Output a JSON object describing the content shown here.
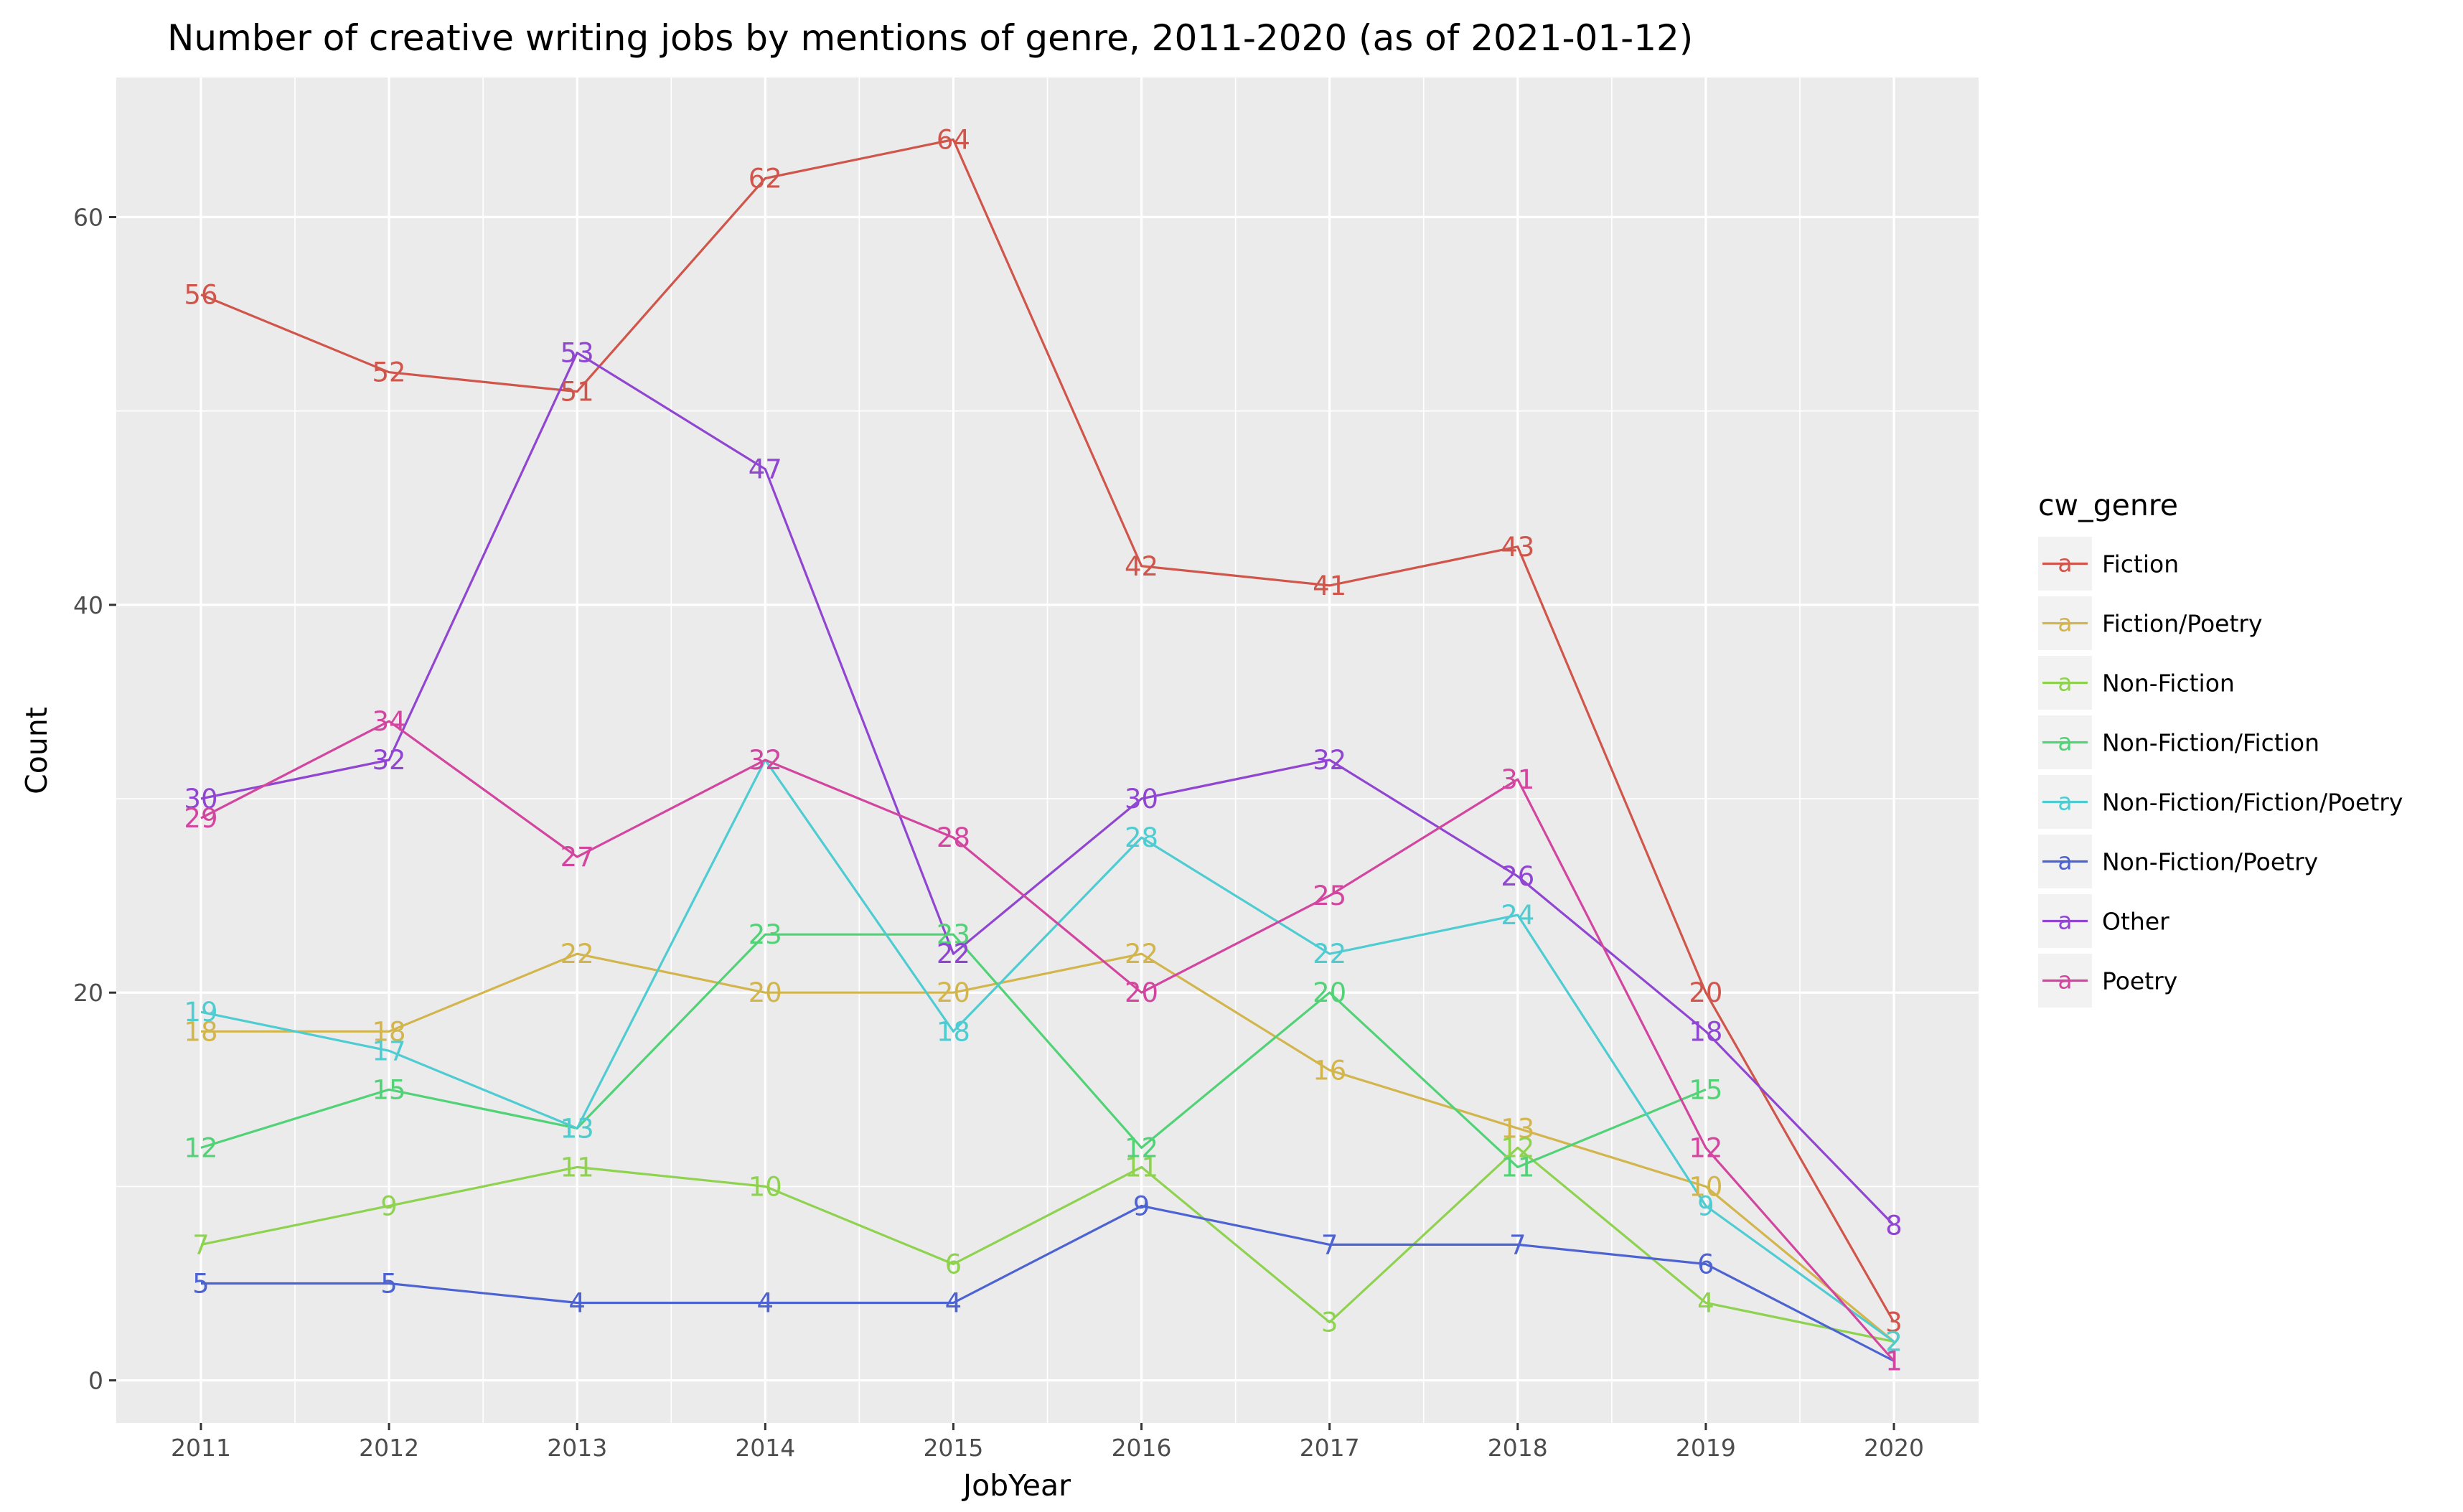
{
  "chart_data": {
    "type": "line",
    "title": "Number of creative writing jobs by mentions of genre, 2011-2020 (as of 2021-01-12)",
    "xlabel": "JobYear",
    "ylabel": "Count",
    "x": [
      2011,
      2012,
      2013,
      2014,
      2015,
      2016,
      2017,
      2018,
      2019,
      2020
    ],
    "x_ticks": [
      "2011",
      "2012",
      "2013",
      "2014",
      "2015",
      "2016",
      "2017",
      "2018",
      "2019",
      "2020"
    ],
    "y_ticks": [
      0,
      20,
      40,
      60
    ],
    "xlim": [
      2010.55,
      2020.45
    ],
    "ylim": [
      -2.2,
      67.2
    ],
    "grid": true,
    "legend": {
      "title": "cw_genre",
      "placement": "right",
      "key_glyph": "a"
    },
    "series": [
      {
        "name": "Fiction",
        "color": "#d0554b",
        "values": [
          56,
          52,
          51,
          62,
          64,
          42,
          41,
          43,
          20,
          3
        ]
      },
      {
        "name": "Fiction/Poetry",
        "color": "#d2b54c",
        "values": [
          18,
          18,
          22,
          20,
          20,
          22,
          16,
          13,
          10,
          2
        ]
      },
      {
        "name": "Non-Fiction",
        "color": "#8ed250",
        "values": [
          7,
          9,
          11,
          10,
          6,
          11,
          3,
          12,
          4,
          2
        ]
      },
      {
        "name": "Non-Fiction/Fiction",
        "color": "#52d276",
        "values": [
          12,
          15,
          13,
          23,
          23,
          12,
          20,
          11,
          15,
          null
        ]
      },
      {
        "name": "Non-Fiction/Fiction/Poetry",
        "color": "#4fccd2",
        "values": [
          19,
          17,
          13,
          32,
          18,
          28,
          22,
          24,
          9,
          2
        ]
      },
      {
        "name": "Non-Fiction/Poetry",
        "color": "#4d63d2",
        "values": [
          5,
          5,
          4,
          4,
          4,
          9,
          7,
          7,
          6,
          1
        ]
      },
      {
        "name": "Other",
        "color": "#9146d2",
        "values": [
          30,
          32,
          53,
          47,
          22,
          30,
          32,
          26,
          18,
          8
        ]
      },
      {
        "name": "Poetry",
        "color": "#d2469f",
        "values": [
          29,
          34,
          27,
          32,
          28,
          20,
          25,
          31,
          12,
          1
        ]
      }
    ]
  }
}
